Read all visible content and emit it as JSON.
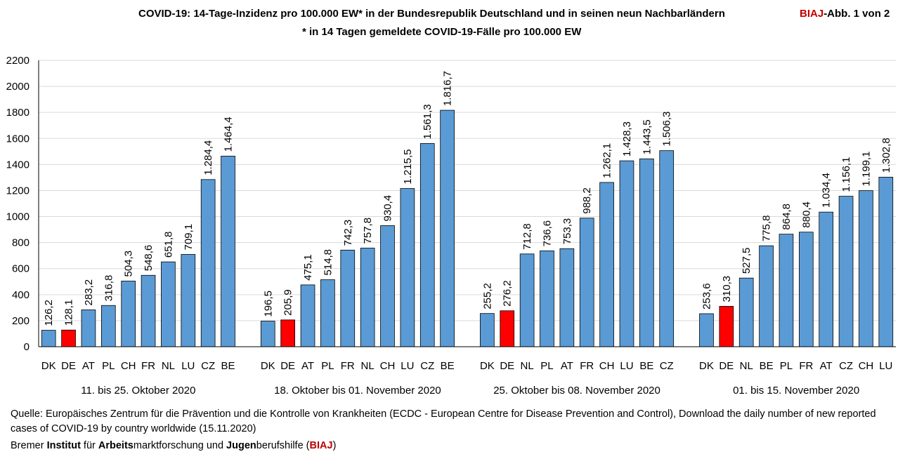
{
  "title": {
    "main": "COVID-19: 14-Tage-Inzidenz pro 100.000 EW* in der Bundesrepublik Deutschland und in seinen neun Nachbarländern",
    "ref_org": "BIAJ",
    "ref_text": "-Abb. 1 von 2",
    "subtitle": "* in 14 Tagen gemeldete COVID-19-Fälle pro 100.000 EW"
  },
  "source": {
    "text": "Quelle: Europäisches Zentrum für die Prävention und die Kontrolle von Krankheiten (ECDC - European Centre for Disease Prevention and Control), Download the daily number of new reported cases of COVID-19 by country worldwide (15.11.2020)",
    "org_parts": [
      {
        "text": "Bremer ",
        "style": "normal"
      },
      {
        "text": "Institut",
        "style": "bold"
      },
      {
        "text": " für ",
        "style": "normal"
      },
      {
        "text": "Arbeits",
        "style": "bold"
      },
      {
        "text": "marktforschung und ",
        "style": "normal"
      },
      {
        "text": "Jugen",
        "style": "bold"
      },
      {
        "text": "berufshilfe (",
        "style": "normal"
      },
      {
        "text": "BIAJ",
        "style": "red"
      },
      {
        "text": ")",
        "style": "normal"
      }
    ]
  },
  "colors": {
    "bar": "#5b9bd5",
    "highlight": "#ff0000",
    "bar_edge": "#000000",
    "grid": "#d9d9d9",
    "brand_red": "#c00000"
  },
  "chart_data": {
    "type": "bar",
    "ylim": [
      0,
      2200
    ],
    "yticks": [
      "0",
      "200",
      "400",
      "600",
      "800",
      "1000",
      "1200",
      "1400",
      "1600",
      "1800",
      "2000",
      "2200"
    ],
    "grid": true,
    "highlight_category": "DE",
    "groups": [
      {
        "label": "11. bis 25. Oktober 2020",
        "categories": [
          "DK",
          "DE",
          "AT",
          "PL",
          "CH",
          "FR",
          "NL",
          "LU",
          "CZ",
          "BE"
        ],
        "values": [
          126.2,
          128.1,
          283.2,
          316.8,
          504.3,
          548.6,
          651.8,
          709.1,
          1284.4,
          1464.4
        ],
        "value_labels": [
          "126,2",
          "128,1",
          "283,2",
          "316,8",
          "504,3",
          "548,6",
          "651,8",
          "709,1",
          "1.284,4",
          "1.464,4"
        ]
      },
      {
        "label": "18. Oktober bis 01. November 2020",
        "categories": [
          "DK",
          "DE",
          "AT",
          "PL",
          "FR",
          "NL",
          "CH",
          "LU",
          "CZ",
          "BE"
        ],
        "values": [
          196.5,
          205.9,
          475.1,
          514.8,
          742.3,
          757.8,
          930.4,
          1215.5,
          1561.3,
          1816.7
        ],
        "value_labels": [
          "196,5",
          "205,9",
          "475,1",
          "514,8",
          "742,3",
          "757,8",
          "930,4",
          "1.215,5",
          "1.561,3",
          "1.816,7"
        ]
      },
      {
        "label": "25. Oktober bis 08. November 2020",
        "categories": [
          "DK",
          "DE",
          "NL",
          "PL",
          "AT",
          "FR",
          "CH",
          "LU",
          "BE",
          "CZ"
        ],
        "values": [
          255.2,
          276.2,
          712.8,
          736.6,
          753.3,
          988.2,
          1262.1,
          1428.3,
          1443.5,
          1506.3
        ],
        "value_labels": [
          "255,2",
          "276,2",
          "712,8",
          "736,6",
          "753,3",
          "988,2",
          "1.262,1",
          "1.428,3",
          "1.443,5",
          "1.506,3"
        ]
      },
      {
        "label": "01. bis 15. November 2020",
        "categories": [
          "DK",
          "DE",
          "NL",
          "BE",
          "PL",
          "FR",
          "AT",
          "CZ",
          "CH",
          "LU"
        ],
        "values": [
          253.6,
          310.3,
          527.5,
          775.8,
          864.8,
          880.4,
          1034.4,
          1156.1,
          1199.1,
          1302.8
        ],
        "value_labels": [
          "253,6",
          "310,3",
          "527,5",
          "775,8",
          "864,8",
          "880,4",
          "1.034,4",
          "1.156,1",
          "1.199,1",
          "1.302,8"
        ]
      }
    ]
  }
}
